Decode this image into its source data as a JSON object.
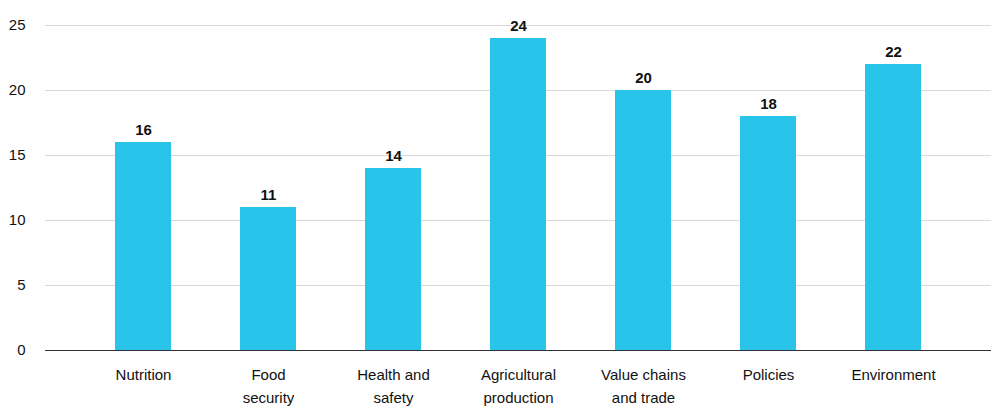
{
  "chart_data": {
    "type": "bar",
    "categories": [
      "Nutrition",
      "Food security",
      "Health and safety",
      "Agricultural production",
      "Value chains and trade",
      "Policies",
      "Environment"
    ],
    "values": [
      16,
      11,
      14,
      24,
      20,
      18,
      22
    ],
    "color": "#29c4ea",
    "ylim": [
      0,
      25
    ],
    "yticks": [
      0,
      5,
      10,
      15,
      20,
      25
    ],
    "grid": true,
    "data_labels": true
  }
}
